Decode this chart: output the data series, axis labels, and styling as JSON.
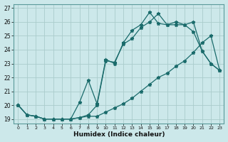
{
  "xlabel": "Humidex (Indice chaleur)",
  "bg_color": "#cce8ea",
  "grid_color": "#aacccc",
  "line_color": "#1a6b6b",
  "x_range": [
    -0.5,
    23.5
  ],
  "y_range": [
    18.7,
    27.3
  ],
  "yticks": [
    19,
    20,
    21,
    22,
    23,
    24,
    25,
    26,
    27
  ],
  "xticks": [
    0,
    1,
    2,
    3,
    4,
    5,
    6,
    7,
    8,
    9,
    10,
    11,
    12,
    13,
    14,
    15,
    16,
    17,
    18,
    19,
    20,
    21,
    22,
    23
  ],
  "series1_x": [
    0,
    1,
    2,
    3,
    4,
    5,
    6,
    7,
    8,
    9,
    10,
    11,
    12,
    13,
    14,
    15,
    16,
    17,
    18,
    19,
    20,
    21,
    22,
    23
  ],
  "series1_y": [
    20.0,
    19.3,
    19.2,
    19.0,
    19.0,
    19.0,
    19.0,
    19.1,
    19.2,
    19.2,
    19.5,
    19.8,
    20.1,
    20.5,
    21.0,
    21.5,
    22.0,
    22.3,
    22.8,
    23.2,
    23.8,
    24.5,
    25.0,
    22.5
  ],
  "series2_x": [
    0,
    1,
    2,
    3,
    4,
    5,
    6,
    7,
    8,
    9,
    10,
    11,
    12,
    13,
    14,
    15,
    16,
    17,
    18,
    19,
    20,
    21,
    22,
    23
  ],
  "series2_y": [
    20.0,
    19.3,
    19.2,
    19.0,
    19.0,
    19.0,
    19.0,
    19.1,
    19.3,
    20.0,
    23.2,
    23.1,
    24.4,
    24.8,
    25.6,
    26.0,
    26.6,
    25.8,
    25.8,
    25.8,
    25.3,
    23.9,
    23.0,
    22.5
  ],
  "series3_x": [
    0,
    1,
    2,
    3,
    4,
    5,
    6,
    7,
    8,
    9,
    10,
    11,
    12,
    13,
    14,
    15,
    16,
    17,
    18,
    19,
    20,
    21,
    22,
    23
  ],
  "series3_y": [
    20.0,
    19.3,
    19.2,
    19.0,
    19.0,
    19.0,
    19.0,
    20.2,
    21.8,
    20.1,
    23.3,
    23.0,
    24.5,
    25.4,
    25.8,
    26.7,
    25.9,
    25.8,
    26.0,
    25.8,
    26.0,
    23.9,
    23.0,
    22.5
  ]
}
